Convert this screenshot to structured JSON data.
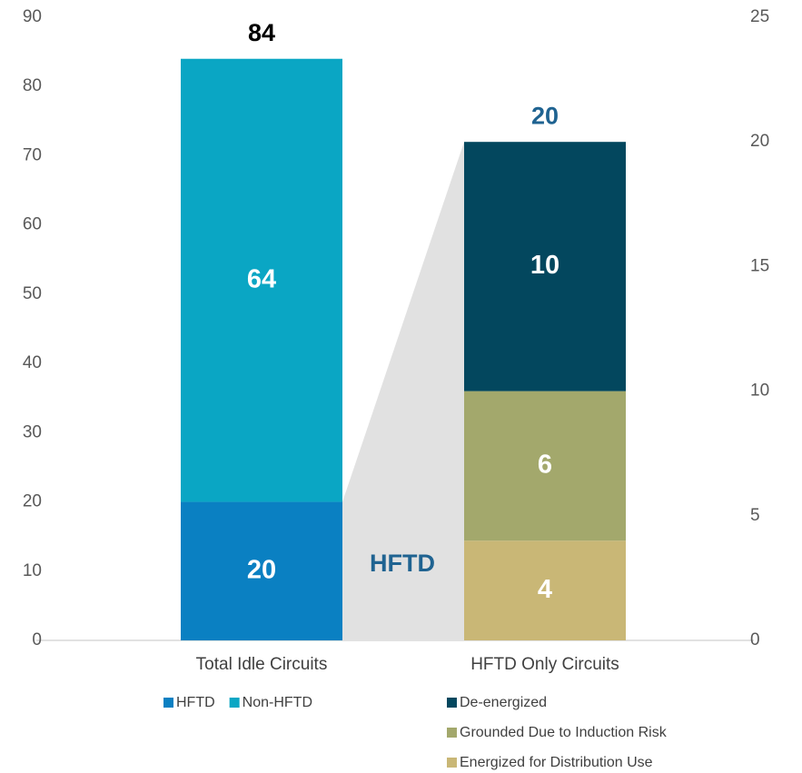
{
  "chart_data": {
    "type": "stacked-bar",
    "categories": [
      "Total Idle Circuits",
      "HFTD Only Circuits"
    ],
    "series": [
      {
        "name": "HFTD",
        "color": "#0a80c2",
        "values": [
          20,
          null
        ],
        "axis": "y"
      },
      {
        "name": "Non-HFTD",
        "color": "#0aa6c4",
        "values": [
          64,
          null
        ],
        "axis": "y"
      },
      {
        "name": "Energized for Distribution Use",
        "color": "#c9b776",
        "values": [
          null,
          4
        ],
        "axis": "y2"
      },
      {
        "name": "Grounded Due to Induction Risk",
        "color": "#a3a86c",
        "values": [
          null,
          6
        ],
        "axis": "y2"
      },
      {
        "name": "De-energized",
        "color": "#03475e",
        "values": [
          null,
          10
        ],
        "axis": "y2"
      }
    ],
    "totals": [
      84,
      20
    ],
    "total_colors": [
      "#000000",
      "#1f6391"
    ],
    "annotation": "HFTD",
    "ylim": [
      0,
      90
    ],
    "yticks": [
      0,
      10,
      20,
      30,
      40,
      50,
      60,
      70,
      80,
      90
    ],
    "y2lim": [
      0,
      25
    ],
    "y2ticks": [
      0,
      5,
      10,
      15,
      20,
      25
    ],
    "grid": false
  }
}
